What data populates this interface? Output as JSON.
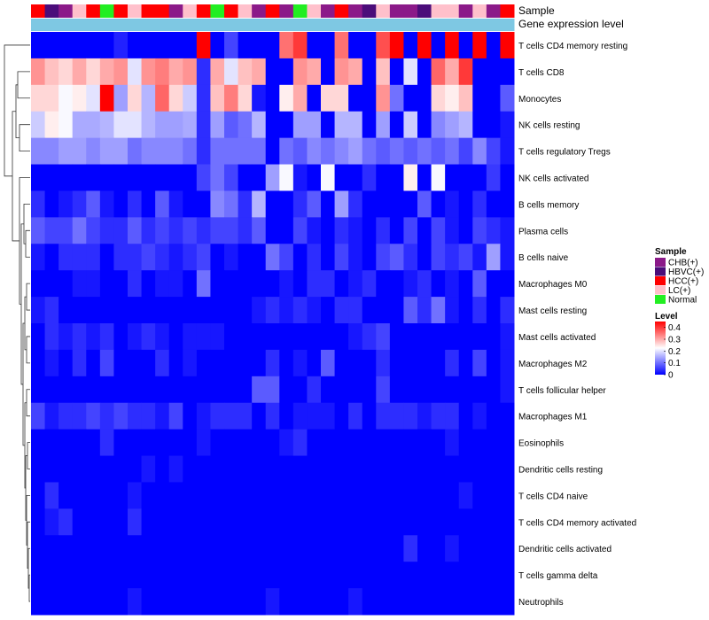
{
  "chart_data": {
    "type": "heatmap",
    "title": "",
    "rows": [
      "T cells CD4 memory resting",
      "T cells CD8",
      "Monocytes",
      "NK cells resting",
      "T cells regulatory  Tregs",
      "NK cells activated",
      "B cells memory",
      "Plasma cells",
      "B cells naive",
      "Macrophages M0",
      "Mast cells resting",
      "Mast cells activated",
      "Macrophages M2",
      "T cells follicular helper",
      "Macrophages M1",
      "Eosinophils",
      "Dendritic cells resting",
      "T cells CD4 naive",
      "T cells CD4 memory activated",
      "Dendritic cells activated",
      "T cells gamma delta",
      "Neutrophils"
    ],
    "samples": [
      "HCC",
      "HBVC",
      "CHB",
      "LC",
      "HCC",
      "Normal",
      "HCC",
      "LC",
      "HCC",
      "HCC",
      "CHB",
      "LC",
      "HCC",
      "Normal",
      "HCC",
      "LC",
      "CHB",
      "HCC",
      "CHB",
      "Normal",
      "LC",
      "CHB",
      "HCC",
      "CHB",
      "HBVC",
      "LC",
      "CHB",
      "CHB",
      "HBVC",
      "LC",
      "LC",
      "CHB",
      "LC",
      "CHB",
      "HCC"
    ],
    "annotation_tracks": [
      {
        "label": "Sample"
      },
      {
        "label": "Gene expression level"
      }
    ],
    "sample_legend": {
      "title": "Sample",
      "entries": [
        {
          "key": "CHB",
          "label": "CHB(+)",
          "color": "#8B1A89"
        },
        {
          "key": "HBVC",
          "label": "HBVC(+)",
          "color": "#4B0D7A"
        },
        {
          "key": "HCC",
          "label": "HCC(+)",
          "color": "#FF0000"
        },
        {
          "key": "LC",
          "label": "LC(+)",
          "color": "#FFC0CB"
        },
        {
          "key": "Normal",
          "label": "Normal",
          "color": "#22EE22"
        }
      ]
    },
    "level_legend": {
      "title": "Level",
      "ticks": [
        "0.4",
        "0.3",
        "0.2",
        "0.1",
        "0"
      ],
      "min": 0,
      "max": 0.45
    },
    "color_scale": {
      "low": "#0000FF",
      "mid": "#FFFFFF",
      "high": "#FF0000",
      "midpoint": 0.225
    },
    "values": [
      [
        0.0,
        0.0,
        0.0,
        0.0,
        0.0,
        0.0,
        0.03,
        0.0,
        0.0,
        0.0,
        0.0,
        0.0,
        0.45,
        0.0,
        0.06,
        0.0,
        0.0,
        0.0,
        0.35,
        0.4,
        0.0,
        0.0,
        0.35,
        0.0,
        0.0,
        0.38,
        0.45,
        0.0,
        0.45,
        0.0,
        0.45,
        0.0,
        0.45,
        0.0,
        0.45
      ],
      [
        0.32,
        0.28,
        0.26,
        0.3,
        0.26,
        0.3,
        0.32,
        0.2,
        0.32,
        0.34,
        0.3,
        0.32,
        0.04,
        0.3,
        0.2,
        0.28,
        0.3,
        0.0,
        0.0,
        0.32,
        0.3,
        0.0,
        0.32,
        0.3,
        0.0,
        0.28,
        0.0,
        0.2,
        0.0,
        0.36,
        0.3,
        0.4,
        0.0,
        0.0,
        0.0
      ],
      [
        0.26,
        0.26,
        0.22,
        0.24,
        0.2,
        0.45,
        0.14,
        0.26,
        0.16,
        0.36,
        0.26,
        0.18,
        0.04,
        0.28,
        0.34,
        0.26,
        0.02,
        0.0,
        0.24,
        0.3,
        0.0,
        0.26,
        0.26,
        0.0,
        0.0,
        0.32,
        0.1,
        0.0,
        0.0,
        0.26,
        0.24,
        0.28,
        0.0,
        0.0,
        0.08
      ],
      [
        0.18,
        0.24,
        0.22,
        0.15,
        0.15,
        0.16,
        0.2,
        0.2,
        0.16,
        0.14,
        0.14,
        0.15,
        0.04,
        0.14,
        0.08,
        0.1,
        0.16,
        0.0,
        0.0,
        0.14,
        0.14,
        0.0,
        0.16,
        0.16,
        0.0,
        0.14,
        0.0,
        0.18,
        0.0,
        0.12,
        0.14,
        0.16,
        0.0,
        0.0,
        0.02
      ],
      [
        0.12,
        0.12,
        0.14,
        0.14,
        0.12,
        0.14,
        0.14,
        0.1,
        0.12,
        0.12,
        0.12,
        0.1,
        0.04,
        0.1,
        0.1,
        0.1,
        0.1,
        0.0,
        0.1,
        0.08,
        0.12,
        0.1,
        0.12,
        0.14,
        0.1,
        0.08,
        0.1,
        0.08,
        0.1,
        0.08,
        0.1,
        0.06,
        0.12,
        0.06,
        0.02
      ],
      [
        0.0,
        0.0,
        0.0,
        0.0,
        0.0,
        0.0,
        0.0,
        0.0,
        0.0,
        0.0,
        0.0,
        0.0,
        0.06,
        0.1,
        0.06,
        0.0,
        0.0,
        0.14,
        0.22,
        0.02,
        0.0,
        0.22,
        0.0,
        0.0,
        0.04,
        0.0,
        0.0,
        0.24,
        0.0,
        0.22,
        0.0,
        0.0,
        0.0,
        0.05,
        0.0
      ],
      [
        0.04,
        0.0,
        0.02,
        0.04,
        0.08,
        0.02,
        0.0,
        0.04,
        0.0,
        0.08,
        0.02,
        0.0,
        0.0,
        0.12,
        0.1,
        0.04,
        0.16,
        0.0,
        0.0,
        0.04,
        0.08,
        0.0,
        0.14,
        0.04,
        0.0,
        0.0,
        0.0,
        0.0,
        0.08,
        0.0,
        0.02,
        0.0,
        0.04,
        0.0,
        0.0
      ],
      [
        0.08,
        0.06,
        0.06,
        0.1,
        0.06,
        0.04,
        0.04,
        0.08,
        0.04,
        0.06,
        0.04,
        0.06,
        0.04,
        0.06,
        0.06,
        0.04,
        0.08,
        0.0,
        0.0,
        0.06,
        0.02,
        0.0,
        0.04,
        0.02,
        0.0,
        0.04,
        0.0,
        0.06,
        0.0,
        0.06,
        0.02,
        0.0,
        0.06,
        0.04,
        0.02
      ],
      [
        0.02,
        0.0,
        0.04,
        0.04,
        0.04,
        0.0,
        0.04,
        0.04,
        0.06,
        0.04,
        0.02,
        0.04,
        0.06,
        0.0,
        0.02,
        0.0,
        0.0,
        0.1,
        0.06,
        0.0,
        0.04,
        0.0,
        0.06,
        0.02,
        0.0,
        0.06,
        0.08,
        0.04,
        0.0,
        0.06,
        0.04,
        0.06,
        0.02,
        0.14,
        0.02
      ],
      [
        0.0,
        0.0,
        0.0,
        0.02,
        0.02,
        0.0,
        0.0,
        0.04,
        0.0,
        0.02,
        0.02,
        0.0,
        0.1,
        0.0,
        0.0,
        0.0,
        0.0,
        0.0,
        0.02,
        0.0,
        0.04,
        0.04,
        0.0,
        0.02,
        0.04,
        0.0,
        0.0,
        0.02,
        0.04,
        0.0,
        0.02,
        0.0,
        0.08,
        0.0,
        0.0
      ],
      [
        0.02,
        0.04,
        0.0,
        0.0,
        0.0,
        0.0,
        0.0,
        0.0,
        0.0,
        0.0,
        0.0,
        0.0,
        0.0,
        0.0,
        0.0,
        0.0,
        0.02,
        0.04,
        0.02,
        0.04,
        0.02,
        0.0,
        0.04,
        0.04,
        0.0,
        0.0,
        0.0,
        0.08,
        0.04,
        0.1,
        0.02,
        0.0,
        0.04,
        0.0,
        0.04
      ],
      [
        0.0,
        0.04,
        0.02,
        0.04,
        0.02,
        0.04,
        0.0,
        0.02,
        0.04,
        0.02,
        0.0,
        0.02,
        0.02,
        0.02,
        0.0,
        0.0,
        0.0,
        0.0,
        0.0,
        0.0,
        0.0,
        0.0,
        0.0,
        0.02,
        0.04,
        0.06,
        0.0,
        0.0,
        0.0,
        0.0,
        0.0,
        0.0,
        0.0,
        0.0,
        0.02
      ],
      [
        0.0,
        0.02,
        0.0,
        0.04,
        0.0,
        0.06,
        0.0,
        0.0,
        0.0,
        0.04,
        0.0,
        0.02,
        0.0,
        0.0,
        0.0,
        0.0,
        0.0,
        0.04,
        0.0,
        0.02,
        0.0,
        0.08,
        0.0,
        0.0,
        0.0,
        0.04,
        0.0,
        0.0,
        0.0,
        0.0,
        0.04,
        0.0,
        0.06,
        0.0,
        0.02
      ],
      [
        0.0,
        0.0,
        0.0,
        0.0,
        0.0,
        0.0,
        0.0,
        0.0,
        0.0,
        0.0,
        0.0,
        0.0,
        0.0,
        0.0,
        0.0,
        0.0,
        0.08,
        0.08,
        0.0,
        0.0,
        0.04,
        0.0,
        0.0,
        0.0,
        0.0,
        0.06,
        0.0,
        0.0,
        0.0,
        0.0,
        0.0,
        0.0,
        0.0,
        0.0,
        0.02
      ],
      [
        0.06,
        0.02,
        0.04,
        0.04,
        0.06,
        0.04,
        0.06,
        0.04,
        0.04,
        0.02,
        0.06,
        0.0,
        0.02,
        0.04,
        0.04,
        0.04,
        0.0,
        0.04,
        0.0,
        0.02,
        0.02,
        0.02,
        0.0,
        0.04,
        0.0,
        0.04,
        0.04,
        0.04,
        0.02,
        0.04,
        0.04,
        0.0,
        0.02,
        0.0,
        0.0
      ],
      [
        0.0,
        0.0,
        0.0,
        0.0,
        0.0,
        0.04,
        0.0,
        0.0,
        0.0,
        0.0,
        0.0,
        0.0,
        0.02,
        0.0,
        0.0,
        0.0,
        0.0,
        0.0,
        0.02,
        0.04,
        0.0,
        0.0,
        0.0,
        0.0,
        0.0,
        0.0,
        0.0,
        0.0,
        0.0,
        0.0,
        0.02,
        0.0,
        0.0,
        0.0,
        0.0
      ],
      [
        0.0,
        0.0,
        0.0,
        0.0,
        0.0,
        0.0,
        0.0,
        0.0,
        0.02,
        0.0,
        0.02,
        0.0,
        0.0,
        0.0,
        0.0,
        0.0,
        0.0,
        0.0,
        0.0,
        0.0,
        0.0,
        0.0,
        0.0,
        0.0,
        0.0,
        0.0,
        0.0,
        0.0,
        0.0,
        0.0,
        0.0,
        0.0,
        0.0,
        0.0,
        0.0
      ],
      [
        0.0,
        0.04,
        0.0,
        0.0,
        0.0,
        0.0,
        0.0,
        0.02,
        0.0,
        0.0,
        0.0,
        0.0,
        0.0,
        0.0,
        0.0,
        0.0,
        0.0,
        0.0,
        0.0,
        0.0,
        0.0,
        0.0,
        0.0,
        0.0,
        0.0,
        0.0,
        0.0,
        0.0,
        0.0,
        0.0,
        0.0,
        0.02,
        0.0,
        0.0,
        0.0
      ],
      [
        0.0,
        0.02,
        0.04,
        0.0,
        0.0,
        0.0,
        0.0,
        0.04,
        0.0,
        0.0,
        0.0,
        0.0,
        0.0,
        0.0,
        0.0,
        0.0,
        0.0,
        0.0,
        0.0,
        0.0,
        0.0,
        0.0,
        0.0,
        0.0,
        0.0,
        0.0,
        0.0,
        0.0,
        0.0,
        0.0,
        0.0,
        0.0,
        0.0,
        0.0,
        0.0
      ],
      [
        0.0,
        0.0,
        0.0,
        0.0,
        0.0,
        0.0,
        0.0,
        0.0,
        0.0,
        0.0,
        0.0,
        0.0,
        0.0,
        0.0,
        0.0,
        0.0,
        0.0,
        0.0,
        0.0,
        0.0,
        0.0,
        0.0,
        0.0,
        0.0,
        0.0,
        0.0,
        0.0,
        0.04,
        0.0,
        0.0,
        0.02,
        0.0,
        0.0,
        0.0,
        0.0
      ],
      [
        0.0,
        0.0,
        0.0,
        0.0,
        0.0,
        0.0,
        0.0,
        0.0,
        0.0,
        0.0,
        0.0,
        0.0,
        0.0,
        0.0,
        0.0,
        0.0,
        0.0,
        0.0,
        0.0,
        0.0,
        0.0,
        0.0,
        0.0,
        0.0,
        0.0,
        0.0,
        0.0,
        0.0,
        0.0,
        0.0,
        0.0,
        0.0,
        0.0,
        0.0,
        0.0
      ],
      [
        0.0,
        0.0,
        0.0,
        0.0,
        0.0,
        0.0,
        0.0,
        0.02,
        0.0,
        0.0,
        0.0,
        0.0,
        0.0,
        0.0,
        0.0,
        0.0,
        0.0,
        0.02,
        0.0,
        0.0,
        0.0,
        0.0,
        0.0,
        0.02,
        0.0,
        0.0,
        0.0,
        0.0,
        0.0,
        0.0,
        0.0,
        0.0,
        0.0,
        0.0,
        0.0
      ]
    ]
  }
}
